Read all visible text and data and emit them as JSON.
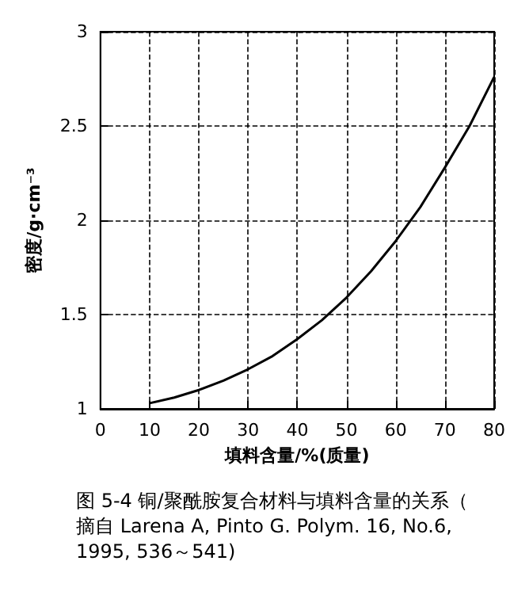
{
  "chart_data": {
    "type": "line",
    "xlabel": "填料含量/%(质量)",
    "ylabel": "密度/g·cm⁻³",
    "x": [
      10,
      15,
      20,
      25,
      30,
      35,
      40,
      45,
      50,
      55,
      60,
      65,
      70,
      75,
      80
    ],
    "series": [
      {
        "color": "#000000",
        "values": [
          1.03,
          1.06,
          1.1,
          1.15,
          1.21,
          1.28,
          1.37,
          1.47,
          1.59,
          1.73,
          1.89,
          2.07,
          2.28,
          2.5,
          2.76
        ]
      }
    ],
    "xlim": [
      0,
      80
    ],
    "xticks": [
      0,
      10,
      20,
      30,
      40,
      50,
      60,
      70,
      80
    ],
    "ylim": [
      1,
      3
    ],
    "yticks": [
      1,
      {
        "value": 1.5,
        "label": "1.5"
      },
      2,
      {
        "value": 2.5,
        "label": "2.5"
      },
      3
    ],
    "grid": true,
    "marker": "none",
    "line_style": "solid",
    "annotations": [
      "图 5-4 铜/聚酰胺复合材料与填料含量的关系（摘自 Larena A, Pinto G. Polym. 16, No.6, 1995, 536～541)"
    ]
  }
}
